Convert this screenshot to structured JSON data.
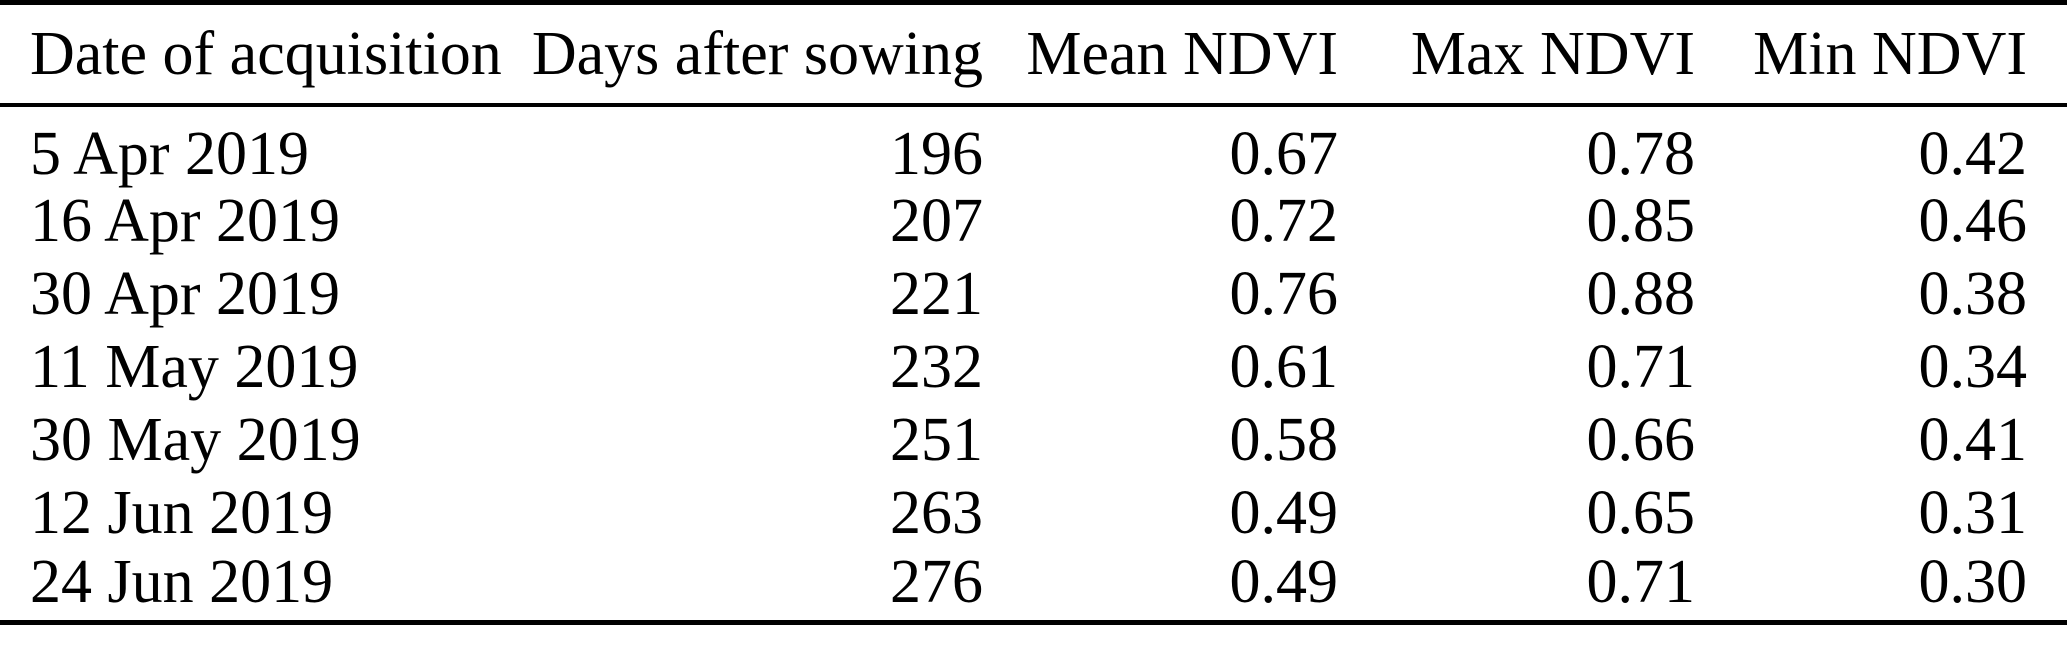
{
  "table": {
    "columns": [
      "Date of acquisition",
      "Days after sowing",
      "Mean NDVI",
      "Max NDVI",
      "Min NDVI"
    ],
    "rows": [
      [
        "5 Apr 2019",
        "196",
        "0.67",
        "0.78",
        "0.42"
      ],
      [
        "16 Apr 2019",
        "207",
        "0.72",
        "0.85",
        "0.46"
      ],
      [
        "30 Apr 2019",
        "221",
        "0.76",
        "0.88",
        "0.38"
      ],
      [
        "11 May 2019",
        "232",
        "0.61",
        "0.71",
        "0.34"
      ],
      [
        "30 May 2019",
        "251",
        "0.58",
        "0.66",
        "0.41"
      ],
      [
        "12 Jun 2019",
        "263",
        "0.49",
        "0.65",
        "0.31"
      ],
      [
        "24 Jun 2019",
        "276",
        "0.49",
        "0.71",
        "0.30"
      ]
    ]
  },
  "chart_data": {
    "type": "table",
    "columns": [
      "Date of acquisition",
      "Days after sowing",
      "Mean NDVI",
      "Max NDVI",
      "Min NDVI"
    ],
    "rows": [
      [
        "5 Apr 2019",
        196,
        0.67,
        0.78,
        0.42
      ],
      [
        "16 Apr 2019",
        207,
        0.72,
        0.85,
        0.46
      ],
      [
        "30 Apr 2019",
        221,
        0.76,
        0.88,
        0.38
      ],
      [
        "11 May 2019",
        232,
        0.61,
        0.71,
        0.34
      ],
      [
        "30 May 2019",
        251,
        0.58,
        0.66,
        0.41
      ],
      [
        "12 Jun 2019",
        263,
        0.49,
        0.65,
        0.31
      ],
      [
        "24 Jun 2019",
        276,
        0.49,
        0.71,
        0.3
      ]
    ]
  },
  "colors": {
    "text": "#000000",
    "background": "#ffffff",
    "rule": "#000000"
  }
}
